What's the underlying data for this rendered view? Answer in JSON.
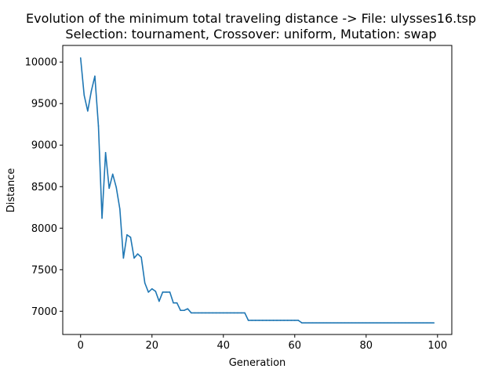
{
  "chart_data": {
    "type": "line",
    "title_line1": "Evolution of the minimum total traveling distance -> File: ulysses16.tsp",
    "title_line2": "Selection: tournament, Crossover: uniform, Mutation: swap",
    "xlabel": "Generation",
    "ylabel": "Distance",
    "xlim": [
      -5,
      104
    ],
    "ylim": [
      6720,
      10200
    ],
    "x_ticks": [
      0,
      20,
      40,
      60,
      80,
      100
    ],
    "x_tick_labels": [
      "0",
      "20",
      "40",
      "60",
      "80",
      "100"
    ],
    "y_ticks": [
      7000,
      7500,
      8000,
      8500,
      9000,
      9500,
      10000
    ],
    "y_tick_labels": [
      "7000",
      "7500",
      "8000",
      "8500",
      "9000",
      "9500",
      "10000"
    ],
    "grid": false,
    "line_color": "#1f77b4",
    "series": [
      {
        "x": [
          0,
          1,
          2,
          3,
          4,
          5,
          6,
          7,
          8,
          9,
          10,
          11,
          12,
          13,
          14,
          15,
          16,
          17,
          18,
          19,
          20,
          21,
          22,
          23,
          24,
          25,
          26,
          27,
          28,
          29,
          30,
          31,
          32,
          33,
          34,
          35,
          36,
          37,
          38,
          39,
          40,
          41,
          42,
          43,
          44,
          45,
          46,
          47,
          48,
          49,
          50,
          51,
          52,
          53,
          54,
          55,
          56,
          57,
          58,
          59,
          60,
          61,
          62,
          63,
          64,
          65,
          66,
          67,
          68,
          69,
          70,
          71,
          72,
          73,
          74,
          75,
          76,
          77,
          78,
          79,
          80,
          81,
          82,
          83,
          84,
          85,
          86,
          87,
          88,
          89,
          90,
          91,
          92,
          93,
          94,
          95,
          96,
          97,
          98,
          99
        ],
        "y": [
          10050,
          9600,
          9410,
          9650,
          9830,
          9230,
          8120,
          8910,
          8480,
          8650,
          8490,
          8230,
          7640,
          7920,
          7890,
          7640,
          7690,
          7650,
          7340,
          7230,
          7270,
          7240,
          7120,
          7230,
          7230,
          7230,
          7100,
          7100,
          7010,
          7010,
          7030,
          6980,
          6980,
          6980,
          6980,
          6980,
          6980,
          6980,
          6980,
          6980,
          6980,
          6980,
          6980,
          6980,
          6980,
          6980,
          6980,
          6890,
          6890,
          6890,
          6890,
          6890,
          6890,
          6890,
          6890,
          6890,
          6890,
          6890,
          6890,
          6890,
          6890,
          6890,
          6860,
          6860,
          6860,
          6860,
          6860,
          6860,
          6860,
          6860,
          6860,
          6860,
          6860,
          6860,
          6860,
          6860,
          6860,
          6860,
          6860,
          6860,
          6860,
          6860,
          6860,
          6860,
          6860,
          6860,
          6860,
          6860,
          6860,
          6860,
          6860,
          6860,
          6860,
          6860,
          6860,
          6860,
          6860,
          6860,
          6860,
          6860
        ]
      }
    ]
  }
}
